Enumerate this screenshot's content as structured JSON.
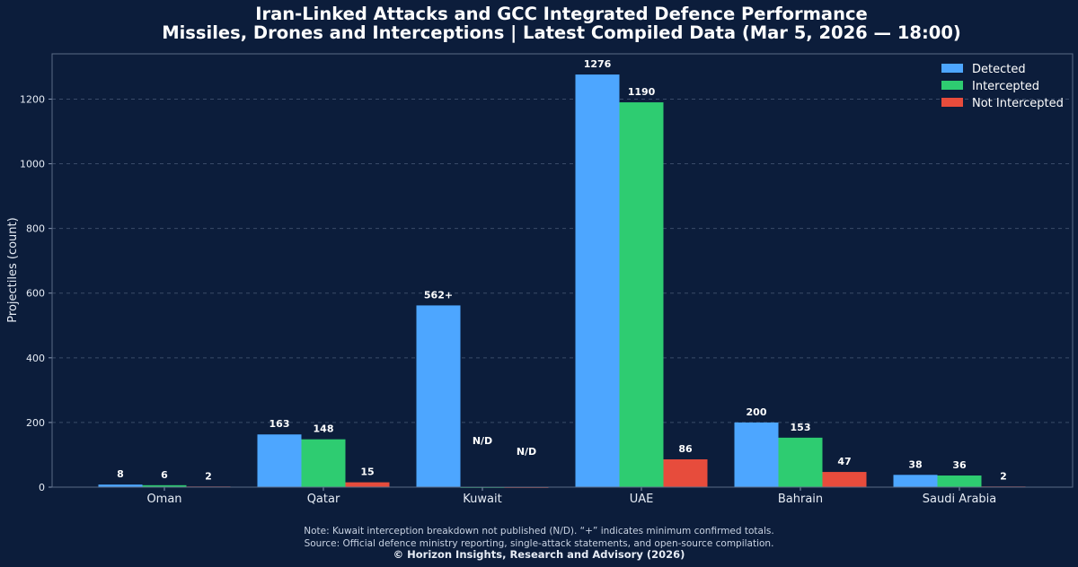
{
  "chart_data": {
    "type": "bar",
    "title": "Iran-Linked Attacks and GCC Integrated Defence Performance",
    "subtitle": "Missiles, Drones and Interceptions | Latest Compiled Data (Mar 5, 2026 — 18:00)",
    "xlabel": "",
    "ylabel": "Projectiles (count)",
    "ylim": [
      0,
      1340
    ],
    "yticks": [
      0,
      200,
      400,
      600,
      800,
      1000,
      1200
    ],
    "grid": true,
    "legend_position": "top-right",
    "categories": [
      "Oman",
      "Qatar",
      "Kuwait",
      "UAE",
      "Bahrain",
      "Saudi Arabia"
    ],
    "series": [
      {
        "name": "Detected",
        "color": "#4da6ff",
        "values": [
          8,
          163,
          562,
          1276,
          200,
          38
        ],
        "labels": [
          "8",
          "163",
          "562+",
          "1276",
          "200",
          "38"
        ]
      },
      {
        "name": "Intercepted",
        "color": "#2ecc71",
        "values": [
          6,
          148,
          0,
          1190,
          153,
          36
        ],
        "labels": [
          "6",
          "148",
          "N/D",
          "1190",
          "153",
          "36"
        ]
      },
      {
        "name": "Not Intercepted",
        "color": "#e74c3c",
        "values": [
          2,
          15,
          0,
          86,
          47,
          2
        ],
        "labels": [
          "2",
          "15",
          "N/D",
          "86",
          "47",
          "2"
        ]
      }
    ]
  },
  "footer": {
    "note": "Note: Kuwait interception breakdown not published (N/D). “+” indicates minimum confirmed totals.",
    "source": "Source: Official defence ministry reporting, single-attack statements, and open-source compilation.",
    "copyright": "© Horizon Insights, Research and Advisory (2026)"
  },
  "colors": {
    "background": "#0c1d3b",
    "plot_border": "#5a6a85",
    "grid": "#3a4b68"
  }
}
